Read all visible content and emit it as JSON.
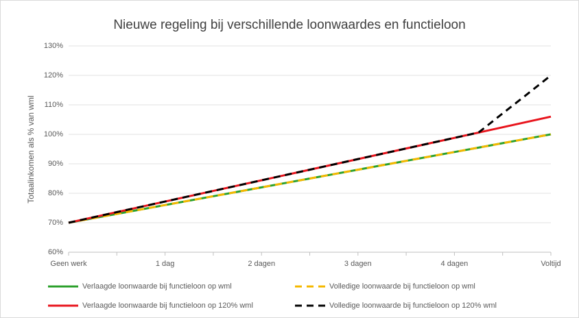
{
  "chart_data": {
    "type": "line",
    "title": "Nieuwe regeling bij verschillende loonwaardes en functieloon",
    "y_label": "Totaalinkomen als % van wml",
    "categories": [
      "Geen werk",
      null,
      null,
      null,
      "1 dag",
      null,
      null,
      null,
      "2 dagen",
      null,
      null,
      null,
      "3 dagen",
      null,
      null,
      null,
      "4 dagen",
      null,
      null,
      null,
      "Voltijd"
    ],
    "ylim": [
      60,
      130
    ],
    "yticks": [
      {
        "value": 60,
        "label": "60%"
      },
      {
        "value": 70,
        "label": "70%"
      },
      {
        "value": 80,
        "label": "80%"
      },
      {
        "value": 90,
        "label": "90%"
      },
      {
        "value": 100,
        "label": "100%"
      },
      {
        "value": 110,
        "label": "110%"
      },
      {
        "value": 120,
        "label": "120%"
      },
      {
        "value": 130,
        "label": "130%"
      }
    ],
    "grid": true,
    "legend": "bottom",
    "series": [
      {
        "name": "Verlaagde loonwaarde bij functieloon op wml",
        "color": "#2ca02c",
        "dashed": false,
        "values": [
          70,
          71.5,
          73,
          74.5,
          76,
          77.5,
          79,
          80.5,
          82,
          83.5,
          85,
          86.5,
          88,
          89.5,
          91,
          92.5,
          94,
          95.5,
          97,
          98.5,
          100
        ]
      },
      {
        "name": "Volledige loonwaarde bij functieloon op wml",
        "color": "#f5b800",
        "dashed": true,
        "values": [
          70,
          71.5,
          73,
          74.5,
          76,
          77.5,
          79,
          80.5,
          82,
          83.5,
          85,
          86.5,
          88,
          89.5,
          91,
          92.5,
          94,
          95.5,
          97,
          98.5,
          100
        ]
      },
      {
        "name": "Verlaagde loonwaarde bij functieloon op 120% wml",
        "color": "#e8141c",
        "dashed": false,
        "values": [
          70,
          71.8,
          73.6,
          75.4,
          77.2,
          79,
          80.8,
          82.6,
          84.4,
          86.2,
          88,
          89.8,
          91.6,
          93.4,
          95.2,
          97,
          98.8,
          100.6,
          102.4,
          104.2,
          106
        ]
      },
      {
        "name": "Volledige loonwaarde bij functieloon op 120% wml",
        "color": "#000000",
        "dashed": true,
        "values": [
          70,
          71.8,
          73.6,
          75.4,
          77.2,
          79,
          80.8,
          82.6,
          84.4,
          86.2,
          88,
          89.8,
          91.6,
          93.4,
          95.2,
          97,
          98.8,
          100.6,
          107.1,
          113.5,
          120
        ]
      }
    ]
  }
}
